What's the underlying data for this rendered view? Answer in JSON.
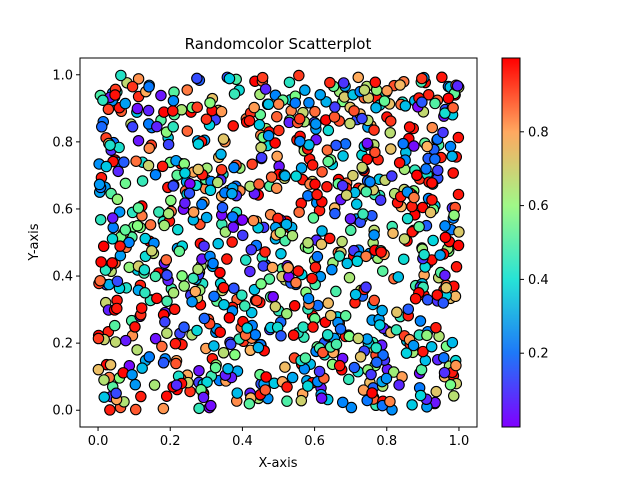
{
  "chart_data": {
    "type": "scatter",
    "title": "Randomcolor Scatterplot",
    "xlabel": "X-axis",
    "ylabel": "Y-axis",
    "xlim": [
      -0.05,
      1.05
    ],
    "ylim": [
      -0.05,
      1.05
    ],
    "x_ticks": [
      0.0,
      0.2,
      0.4,
      0.6,
      0.8,
      1.0
    ],
    "x_tick_labels": [
      "0.0",
      "0.2",
      "0.4",
      "0.6",
      "0.8",
      "1.0"
    ],
    "y_ticks": [
      0.0,
      0.2,
      0.4,
      0.6,
      0.8,
      1.0
    ],
    "y_tick_labels": [
      "0.0",
      "0.2",
      "0.4",
      "0.6",
      "0.8",
      "1.0"
    ],
    "grid": false,
    "point_count_estimate": 1000,
    "point_sampling": "approximately 1000 points uniformly distributed in [0,1] x [0,1], each with a random color value in [0,1]; individual coordinates not resolvable from the image",
    "colormap": "rainbow",
    "colormap_stops": [
      "#8000ff",
      "#0080ff",
      "#00d5e0",
      "#80ff80",
      "#ffb360",
      "#ff2010",
      "#ff0000"
    ],
    "marker_edge_color": "#000000",
    "colorbar": {
      "range": [
        0.0,
        1.0
      ],
      "ticks": [
        0.2,
        0.4,
        0.6,
        0.8
      ],
      "tick_labels": [
        "0.2",
        "0.4",
        "0.6",
        "0.8"
      ]
    }
  }
}
